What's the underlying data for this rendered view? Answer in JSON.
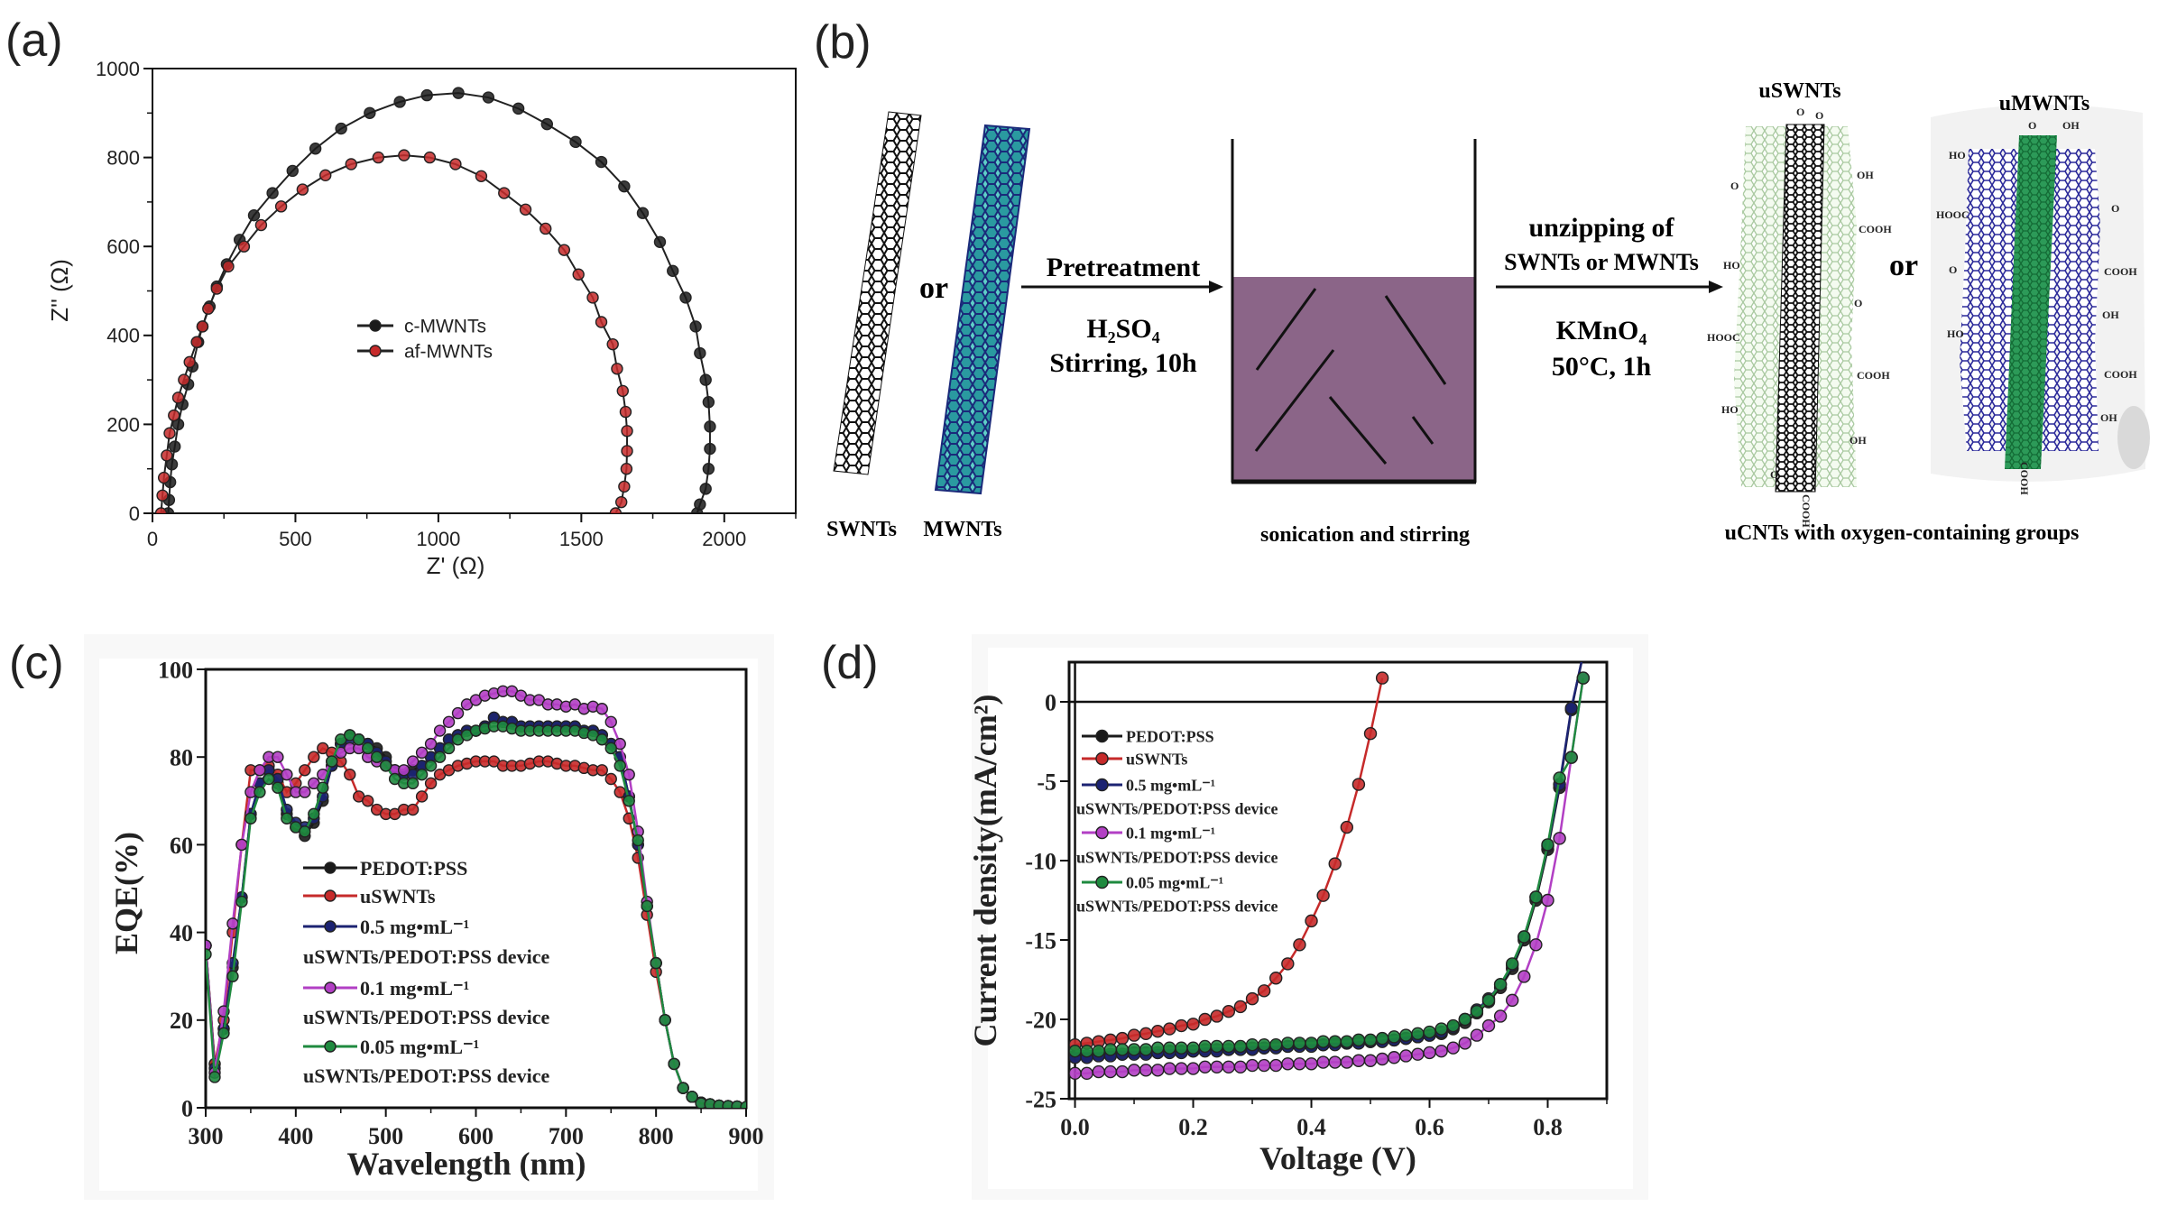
{
  "panel_labels": {
    "a": "(a)",
    "b": "(b)",
    "c": "(c)",
    "d": "(d)"
  },
  "colors": {
    "black": "#1a1a1a",
    "red": "#c62a2a",
    "navy": "#1c2372",
    "purple": "#b23fc4",
    "green": "#1f8a3f",
    "liquid": "#8b6588"
  },
  "chart_data": [
    {
      "id": "a",
      "type": "scatter",
      "title": "",
      "xlabel": "Z' (Ω)",
      "ylabel": "Z'' (Ω)",
      "xlim": [
        0,
        2250
      ],
      "ylim": [
        0,
        1000
      ],
      "xticks": [
        0,
        500,
        1000,
        1500,
        2000
      ],
      "yticks": [
        0,
        200,
        400,
        600,
        800,
        1000
      ],
      "grid": false,
      "legend_position": "center",
      "series": [
        {
          "name": "c-MWNTs",
          "legend_lines": [
            "c-MWNTs"
          ],
          "color": "#1a1a1a",
          "x": [
            55,
            58,
            62,
            68,
            78,
            90,
            105,
            125,
            140,
            160,
            175,
            200,
            225,
            260,
            305,
            355,
            420,
            490,
            570,
            660,
            760,
            865,
            960,
            1070,
            1175,
            1280,
            1380,
            1480,
            1570,
            1650,
            1715,
            1775,
            1820,
            1865,
            1900,
            1915,
            1935,
            1945,
            1950,
            1950,
            1945,
            1935,
            1915,
            1905
          ],
          "y": [
            0,
            30,
            70,
            110,
            150,
            200,
            245,
            290,
            330,
            385,
            420,
            465,
            510,
            560,
            615,
            670,
            720,
            770,
            820,
            865,
            900,
            925,
            940,
            945,
            935,
            910,
            875,
            835,
            790,
            735,
            675,
            610,
            545,
            485,
            420,
            360,
            300,
            250,
            195,
            145,
            100,
            55,
            20,
            0
          ]
        },
        {
          "name": "af-MWNTs",
          "legend_lines": [
            "af-MWNTs"
          ],
          "color": "#c62a2a",
          "x": [
            30,
            35,
            40,
            50,
            60,
            75,
            90,
            110,
            130,
            155,
            175,
            195,
            225,
            265,
            320,
            380,
            450,
            525,
            605,
            695,
            790,
            880,
            970,
            1060,
            1150,
            1230,
            1305,
            1375,
            1440,
            1490,
            1540,
            1570,
            1610,
            1625,
            1645,
            1655,
            1660,
            1660,
            1658,
            1650,
            1640,
            1620
          ],
          "y": [
            0,
            40,
            80,
            130,
            180,
            220,
            260,
            300,
            340,
            385,
            420,
            460,
            505,
            555,
            600,
            648,
            690,
            728,
            760,
            785,
            800,
            805,
            800,
            785,
            758,
            720,
            683,
            640,
            592,
            537,
            485,
            430,
            380,
            325,
            275,
            228,
            185,
            140,
            100,
            60,
            25,
            0
          ]
        }
      ]
    },
    {
      "id": "c",
      "type": "line",
      "title": "",
      "xlabel": "Wavelength (nm)",
      "ylabel": "EQE(%)",
      "xlim": [
        300,
        900
      ],
      "ylim": [
        0,
        100
      ],
      "xticks": [
        300,
        400,
        500,
        600,
        700,
        800,
        900
      ],
      "yticks": [
        0,
        20,
        40,
        60,
        80,
        100
      ],
      "grid": false,
      "legend_position": "center-left",
      "x": [
        300,
        310,
        320,
        330,
        340,
        350,
        360,
        370,
        380,
        390,
        400,
        410,
        420,
        430,
        440,
        450,
        460,
        470,
        480,
        490,
        500,
        510,
        520,
        530,
        540,
        550,
        560,
        570,
        580,
        590,
        600,
        610,
        620,
        630,
        640,
        650,
        660,
        670,
        680,
        690,
        700,
        710,
        720,
        730,
        740,
        750,
        760,
        770,
        780,
        790,
        800,
        810,
        820,
        830,
        840,
        850,
        860,
        870,
        880,
        890,
        900
      ],
      "series": [
        {
          "name": "PEDOT:PSS",
          "legend_lines": [
            "PEDOT:PSS"
          ],
          "color": "#1a1a1a",
          "y": [
            37,
            10,
            18,
            32,
            48,
            67,
            74,
            77,
            74,
            67,
            64,
            62,
            65,
            70,
            78,
            83,
            85,
            84,
            83,
            82,
            80,
            77,
            76,
            77,
            78,
            80,
            82,
            84,
            85,
            86,
            86,
            87,
            89,
            88,
            88,
            87,
            87,
            87,
            87,
            87,
            87,
            87,
            86,
            86,
            85,
            83,
            80,
            71,
            60,
            46,
            33,
            20,
            10,
            4.5,
            2.5,
            1.2,
            0.8,
            0.5,
            0.4,
            0.3,
            0
          ]
        },
        {
          "name": "uSWNTs",
          "legend_lines": [
            "uSWNTs"
          ],
          "color": "#c62a2a",
          "y": [
            37,
            10,
            20,
            40,
            60,
            77,
            77,
            78,
            76,
            72,
            74,
            77,
            80,
            82,
            81,
            79,
            76,
            71,
            70,
            68,
            67,
            67,
            68,
            68,
            71,
            74,
            76,
            77,
            78,
            78.5,
            79,
            79,
            79,
            78,
            78,
            78,
            78.5,
            79,
            79,
            78.5,
            78,
            78,
            77.5,
            77,
            77,
            75,
            72,
            66,
            57,
            44,
            31,
            20,
            10,
            4.5,
            2.5,
            1.2,
            0.8,
            0.5,
            0.4,
            0.3,
            0
          ]
        },
        {
          "name": "0.5 mg•mL⁻¹ uSWNTs/PEDOT:PSS device",
          "legend_lines": [
            "0.5 mg•mL⁻¹",
            "uSWNTs/PEDOT:PSS device"
          ],
          "color": "#1c2372",
          "y": [
            37,
            9,
            18,
            33,
            48,
            67,
            74,
            77,
            75,
            68,
            65,
            64,
            66,
            71,
            78,
            83,
            84,
            84,
            83,
            81,
            79,
            77,
            76,
            76,
            78,
            80,
            82,
            84,
            85,
            86,
            86,
            87,
            89,
            88,
            88,
            87,
            87,
            87,
            87,
            87,
            87,
            87,
            86,
            86,
            85,
            83,
            80,
            71,
            60,
            46,
            33,
            20,
            10,
            4.5,
            2.5,
            1.2,
            0.8,
            0.5,
            0.4,
            0.3,
            0
          ]
        },
        {
          "name": "0.1 mg•mL⁻¹ uSWNTs/PEDOT:PSS device",
          "legend_lines": [
            "0.1 mg•mL⁻¹",
            "uSWNTs/PEDOT:PSS device"
          ],
          "color": "#b23fc4",
          "y": [
            37,
            8,
            22,
            42,
            60,
            72,
            77,
            80,
            80,
            76,
            72,
            72,
            74,
            76,
            79,
            81,
            82,
            82,
            80,
            79,
            78,
            77,
            77,
            79,
            81,
            83,
            86,
            88,
            90,
            92,
            93,
            94,
            94.5,
            95,
            95,
            94,
            93,
            93,
            92,
            92,
            91.5,
            92,
            91,
            91.5,
            91,
            88,
            83,
            76,
            63,
            47,
            33,
            20,
            10,
            4.5,
            2.5,
            1.2,
            0.8,
            0.5,
            0.4,
            0.3,
            0
          ]
        },
        {
          "name": "0.05 mg•mL⁻¹ uSWNTs/PEDOT:PSS device",
          "legend_lines": [
            "0.05 mg•mL⁻¹",
            "uSWNTs/PEDOT:PSS device"
          ],
          "color": "#1f8a3f",
          "y": [
            35,
            7,
            17,
            30,
            47,
            66,
            72,
            75,
            73,
            66,
            64,
            63,
            67,
            73,
            79,
            84,
            85,
            84,
            82,
            80,
            78,
            75,
            74,
            74,
            76,
            78,
            80,
            82,
            84,
            85,
            86,
            86.5,
            87,
            87,
            86.5,
            86,
            86,
            86,
            86,
            86,
            86,
            86,
            85.5,
            85,
            84,
            82,
            78,
            70,
            61,
            46,
            33,
            20,
            10,
            4.5,
            2.5,
            1,
            0.8,
            0.5,
            0.4,
            0.3,
            0.2
          ]
        }
      ]
    },
    {
      "id": "d",
      "type": "line",
      "title": "",
      "xlabel": "Voltage (V)",
      "ylabel": "Current density(mA/cm²)",
      "xlim": [
        -0.01,
        0.9
      ],
      "ylim": [
        -25,
        2.5
      ],
      "xticks": [
        "0.0",
        "0.2",
        "0.4",
        "0.6",
        "0.8"
      ],
      "yticks": [
        0,
        -5,
        -10,
        -15,
        -20,
        -25
      ],
      "grid": false,
      "legend_position": "top-left",
      "x": [
        0,
        0.02,
        0.04,
        0.06,
        0.08,
        0.1,
        0.12,
        0.14,
        0.16,
        0.18,
        0.2,
        0.22,
        0.24,
        0.26,
        0.28,
        0.3,
        0.32,
        0.34,
        0.36,
        0.38,
        0.4,
        0.42,
        0.44,
        0.46,
        0.48,
        0.5,
        0.52,
        0.54,
        0.56,
        0.58,
        0.6,
        0.62,
        0.64,
        0.66,
        0.68,
        0.7,
        0.72,
        0.74,
        0.76,
        0.78,
        0.8,
        0.82,
        0.84,
        0.86
      ],
      "series": [
        {
          "name": "PEDOT:PSS",
          "legend_lines": [
            "PEDOT:PSS"
          ],
          "color": "#1a1a1a",
          "y": [
            -22.3,
            -22.3,
            -22.2,
            -22.2,
            -22.2,
            -22.1,
            -22.1,
            -22.1,
            -22.0,
            -22.0,
            -22.0,
            -21.9,
            -21.9,
            -21.9,
            -21.8,
            -21.8,
            -21.8,
            -21.7,
            -21.7,
            -21.6,
            -21.6,
            -21.6,
            -21.5,
            -21.5,
            -21.4,
            -21.4,
            -21.3,
            -21.3,
            -21.2,
            -21.1,
            -21.0,
            -20.9,
            -20.6,
            -20.2,
            -19.6,
            -18.9,
            -18.0,
            -16.8,
            -15.0,
            -12.5,
            -9.3,
            -5.4,
            -0.5,
            3.0
          ]
        },
        {
          "name": "uSWNTs",
          "legend_lines": [
            "uSWNTs"
          ],
          "color": "#c62a2a",
          "y": [
            -21.6,
            -21.5,
            -21.4,
            -21.3,
            -21.2,
            -21.0,
            -20.9,
            -20.75,
            -20.6,
            -20.4,
            -20.3,
            -20.0,
            -19.8,
            -19.5,
            -19.2,
            -18.7,
            -18.2,
            -17.4,
            -16.5,
            -15.3,
            -13.8,
            -12.2,
            -10.2,
            -7.9,
            -5.2,
            -2.0,
            1.5,
            null,
            null,
            null,
            null,
            null,
            null,
            null,
            null,
            null,
            null,
            null,
            null,
            null,
            null,
            null,
            null,
            null
          ]
        },
        {
          "name": "0.5 mg•mL⁻¹ uSWNTs/PEDOT:PSS device",
          "legend_lines": [
            "0.5 mg•mL⁻¹",
            "uSWNTs/PEDOT:PSS device"
          ],
          "color": "#1c2372",
          "y": [
            -22.4,
            -22.4,
            -22.3,
            -22.3,
            -22.2,
            -22.2,
            -22.2,
            -22.1,
            -22.1,
            -22.1,
            -22.0,
            -22.0,
            -22.0,
            -21.9,
            -21.9,
            -21.9,
            -21.8,
            -21.8,
            -21.7,
            -21.7,
            -21.7,
            -21.6,
            -21.6,
            -21.5,
            -21.5,
            -21.4,
            -21.4,
            -21.3,
            -21.2,
            -21.1,
            -21.0,
            -20.8,
            -20.5,
            -20.0,
            -19.4,
            -18.7,
            -17.8,
            -16.6,
            -14.8,
            -12.3,
            -9.1,
            -5.2,
            -0.4,
            3.0
          ]
        },
        {
          "name": "0.1 mg•mL⁻¹ uSWNTs/PEDOT:PSS device",
          "legend_lines": [
            "0.1 mg•mL⁻¹",
            "uSWNTs/PEDOT:PSS device"
          ],
          "color": "#b23fc4",
          "y": [
            -23.4,
            -23.4,
            -23.3,
            -23.3,
            -23.3,
            -23.2,
            -23.2,
            -23.2,
            -23.1,
            -23.1,
            -23.1,
            -23.0,
            -23.0,
            -23.0,
            -23.0,
            -22.9,
            -22.9,
            -22.9,
            -22.8,
            -22.8,
            -22.8,
            -22.7,
            -22.7,
            -22.7,
            -22.6,
            -22.6,
            -22.5,
            -22.4,
            -22.3,
            -22.2,
            -22.1,
            -22.0,
            -21.8,
            -21.5,
            -21.0,
            -20.4,
            -19.8,
            -18.8,
            -17.3,
            -15.3,
            -12.5,
            -8.6,
            -3.5,
            1.5
          ]
        },
        {
          "name": "0.05 mg•mL⁻¹ uSWNTs/PEDOT:PSS device",
          "legend_lines": [
            "0.05 mg•mL⁻¹",
            "uSWNTs/PEDOT:PSS device"
          ],
          "color": "#1f8a3f",
          "y": [
            -22.0,
            -22.0,
            -22.0,
            -21.9,
            -21.9,
            -21.9,
            -21.9,
            -21.8,
            -21.8,
            -21.8,
            -21.8,
            -21.7,
            -21.7,
            -21.7,
            -21.7,
            -21.6,
            -21.6,
            -21.6,
            -21.5,
            -21.5,
            -21.5,
            -21.4,
            -21.4,
            -21.4,
            -21.3,
            -21.3,
            -21.2,
            -21.1,
            -21.0,
            -20.9,
            -20.8,
            -20.6,
            -20.4,
            -20.0,
            -19.5,
            -18.8,
            -17.8,
            -16.5,
            -14.8,
            -12.3,
            -9.0,
            -4.8,
            -3.5,
            1.5
          ]
        }
      ]
    }
  ],
  "diagram_b": {
    "swnts_label": "SWNTs",
    "mwnts_label": "MWNTs",
    "or_label": "or",
    "or_label_2": "or",
    "step1_title": "Pretreatment",
    "step1_reagent": "H₂SO₄",
    "step1_condition": "Stirring, 10h",
    "beaker_caption": "sonication and stirring",
    "step2_title_line1": "unzipping of",
    "step2_title_line2": "SWNTs or MWNTs",
    "step2_reagent": "KMnO₄",
    "step2_condition": "50°C, 1h",
    "uswnts_label": "uSWNTs",
    "umwnts_label": "uMWNTs",
    "product_caption": "uCNTs with oxygen-containing groups",
    "uswnt_groups": [
      "O",
      "O",
      "OH",
      "O",
      "COOH",
      "HO",
      "O",
      "HOOC",
      "COOH",
      "HO",
      "OH",
      "O",
      "COOH"
    ],
    "umwnt_groups": [
      "O",
      "OH",
      "HO",
      "HOOC",
      "O",
      "O",
      "COOH",
      "OH",
      "HO",
      "COOH",
      "OH",
      "COOH"
    ]
  }
}
